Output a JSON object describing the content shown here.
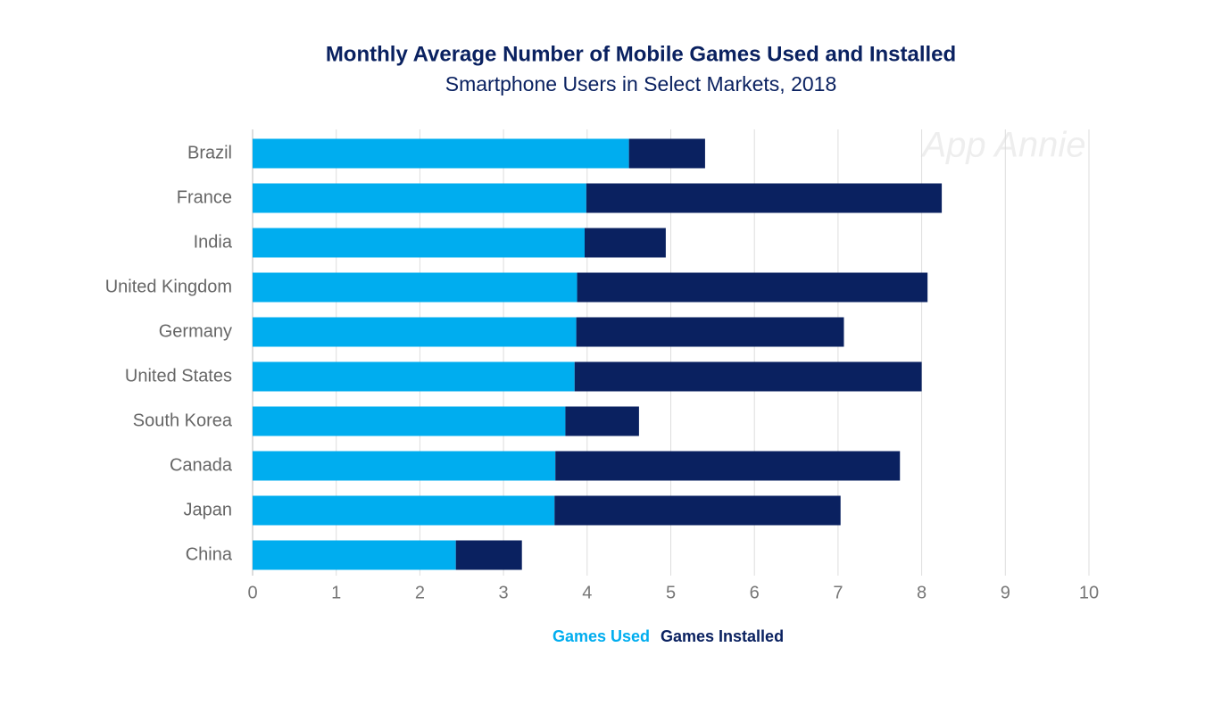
{
  "chart_data": {
    "type": "bar",
    "orientation": "horizontal",
    "stacked": true,
    "title": "Monthly Average Number of Mobile Games Used and Installed",
    "subtitle": "Smartphone Users in Select Markets, 2018",
    "watermark": "App Annie",
    "categories": [
      "Brazil",
      "France",
      "India",
      "United Kingdom",
      "Germany",
      "United States",
      "South Korea",
      "Canada",
      "Japan",
      "China"
    ],
    "series": [
      {
        "name": "Games Used",
        "color": "#00adef",
        "values": [
          4.5,
          3.99,
          3.97,
          3.88,
          3.87,
          3.85,
          3.74,
          3.62,
          3.61,
          2.43
        ]
      },
      {
        "name": "Games Installed",
        "color": "#0a2160",
        "values": [
          0.91,
          4.25,
          0.97,
          4.19,
          3.2,
          4.15,
          0.88,
          4.12,
          3.42,
          0.79
        ]
      }
    ],
    "xlim": [
      0,
      10
    ],
    "xticks": [
      0,
      1,
      2,
      3,
      4,
      5,
      6,
      7,
      8,
      9,
      10
    ],
    "grid": true,
    "legend": "bottom"
  }
}
